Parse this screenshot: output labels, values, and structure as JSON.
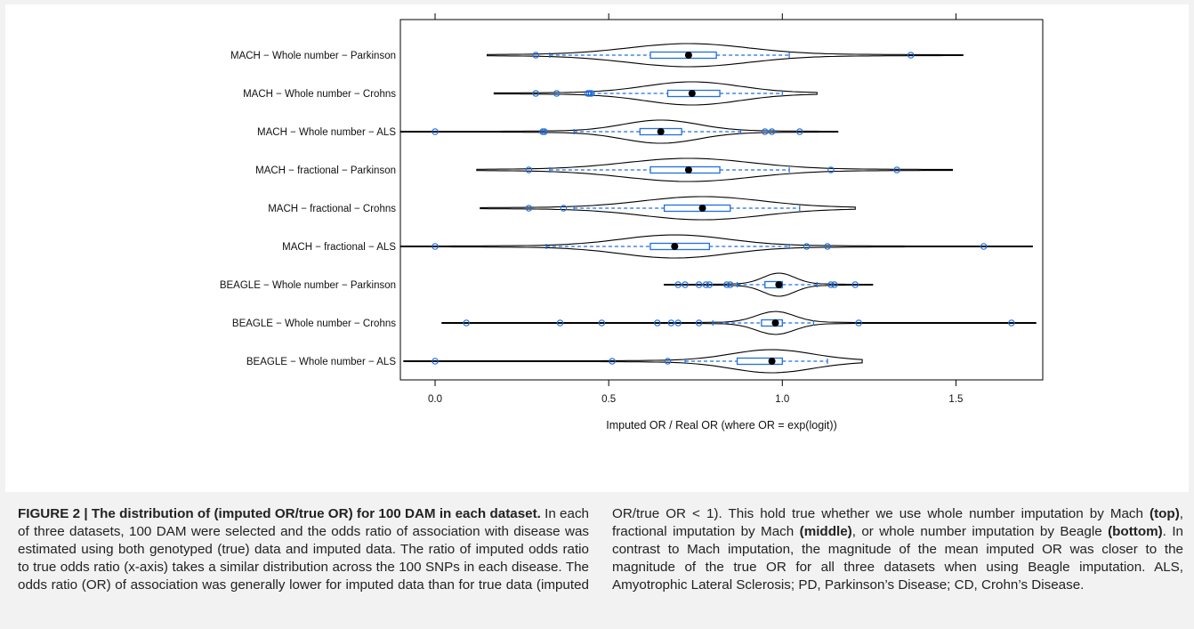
{
  "chart_data": {
    "type": "violin",
    "title": "",
    "xlabel": "Imputed OR / Real OR  (where OR = exp(logit))",
    "ylabel": "",
    "xlim": [
      -0.1,
      1.75
    ],
    "xticks": [
      0.0,
      0.5,
      1.0,
      1.5
    ],
    "xtick_labels": [
      "0.0",
      "0.5",
      "1.0",
      "1.5"
    ],
    "grid": false,
    "colors": {
      "violin": "#000000",
      "box": "#1e6fe0",
      "outlier": "#1e6fe0",
      "median": "#000000"
    },
    "rows": [
      {
        "label": "MACH − Whole number − Parkinson",
        "min": 0.15,
        "max": 1.52,
        "q1": 0.62,
        "median": 0.73,
        "q3": 0.81,
        "wlo": 0.33,
        "whi": 1.02,
        "outliers": [
          0.29,
          1.37
        ],
        "peak": 0.73
      },
      {
        "label": "MACH − Whole number − Crohns",
        "min": 0.17,
        "max": 1.1,
        "q1": 0.67,
        "median": 0.74,
        "q3": 0.82,
        "wlo": 0.45,
        "whi": 1.0,
        "outliers": [
          0.29,
          0.35,
          0.44,
          0.445,
          0.45
        ],
        "peak": 0.74
      },
      {
        "label": "MACH − Whole number − ALS",
        "min": -0.1,
        "max": 1.16,
        "q1": 0.59,
        "median": 0.65,
        "q3": 0.71,
        "wlo": 0.4,
        "whi": 0.88,
        "outliers": [
          0.0,
          0.31,
          0.315,
          0.95,
          0.97,
          1.05
        ],
        "peak": 0.65
      },
      {
        "label": "MACH − fractional − Parkinson",
        "min": 0.12,
        "max": 1.49,
        "q1": 0.62,
        "median": 0.73,
        "q3": 0.82,
        "wlo": 0.33,
        "whi": 1.02,
        "outliers": [
          0.27,
          1.14,
          1.33
        ],
        "peak": 0.73
      },
      {
        "label": "MACH − fractional − Crohns",
        "min": 0.13,
        "max": 1.21,
        "q1": 0.66,
        "median": 0.77,
        "q3": 0.85,
        "wlo": 0.4,
        "whi": 1.05,
        "outliers": [
          0.27,
          0.37
        ],
        "peak": 0.77
      },
      {
        "label": "MACH − fractional − ALS",
        "min": -0.1,
        "max": 1.72,
        "q1": 0.62,
        "median": 0.69,
        "q3": 0.79,
        "wlo": 0.32,
        "whi": 1.02,
        "outliers": [
          0.0,
          1.07,
          1.13,
          1.58
        ],
        "peak": 0.69
      },
      {
        "label": "BEAGLE − Whole number − Parkinson",
        "min": 0.66,
        "max": 1.26,
        "q1": 0.95,
        "median": 0.99,
        "q3": 1.0,
        "wlo": 0.87,
        "whi": 1.1,
        "outliers": [
          0.7,
          0.72,
          0.76,
          0.78,
          0.79,
          0.84,
          0.85,
          1.14,
          1.15,
          1.21
        ],
        "peak": 0.99
      },
      {
        "label": "BEAGLE − Whole number − Crohns",
        "min": 0.02,
        "max": 1.73,
        "q1": 0.94,
        "median": 0.98,
        "q3": 1.0,
        "wlo": 0.8,
        "whi": 1.09,
        "outliers": [
          0.09,
          0.36,
          0.48,
          0.64,
          0.68,
          0.7,
          0.76,
          1.22,
          1.66
        ],
        "peak": 0.98
      },
      {
        "label": "BEAGLE − Whole number − ALS",
        "min": -0.09,
        "max": 1.23,
        "q1": 0.87,
        "median": 0.97,
        "q3": 1.0,
        "wlo": 0.72,
        "whi": 1.13,
        "outliers": [
          0.0,
          0.51,
          0.67
        ],
        "peak": 0.97
      }
    ]
  },
  "caption": {
    "heading": "FIGURE 2 | The distribution of (imputed OR/true OR) for 100 DAM in each dataset.",
    "part1": " In each of three datasets, 100 DAM were selected and the odds ratio of association with disease was estimated using both genotyped (true) data and imputed data. The ratio of imputed odds ratio to true odds ratio (x-axis) takes a similar distribution across the 100 SNPs in each disease. The odds ratio (OR) of association was generally lower for imputed data than for true data (imputed OR/true OR < 1). This hold true whether we use whole number imputation by Mach ",
    "top": "(top)",
    "part2": ", fractional imputation by Mach ",
    "middle": "(middle)",
    "part3": ", or whole number imputation by Beagle ",
    "bottom": "(bottom)",
    "part4": ". In contrast to Mach imputation, the magnitude of the mean imputed OR was closer to the magnitude of the true OR for all three datasets when using Beagle imputation. ALS, Amyotrophic Lateral Sclerosis; PD, Parkinson’s Disease; CD, Crohn’s Disease."
  }
}
